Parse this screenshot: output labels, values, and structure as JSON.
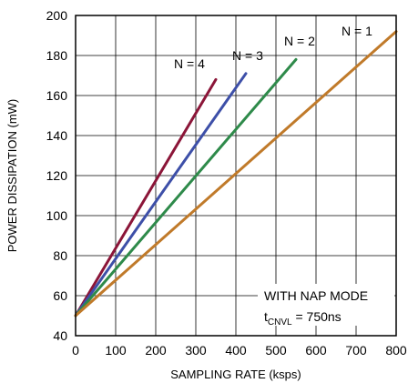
{
  "chart_data": {
    "type": "line",
    "xlabel": "SAMPLING RATE (ksps)",
    "ylabel": "POWER DISSIPATION (mW)",
    "xlim": [
      0,
      800
    ],
    "ylim": [
      40,
      200
    ],
    "xticks": [
      0,
      100,
      200,
      300,
      400,
      500,
      600,
      700,
      800
    ],
    "yticks": [
      40,
      60,
      80,
      100,
      120,
      140,
      160,
      180,
      200
    ],
    "grid": true,
    "series": [
      {
        "name": "N = 4",
        "color": "#8b1538",
        "x": [
          0,
          350
        ],
        "y": [
          50,
          168
        ]
      },
      {
        "name": "N = 3",
        "color": "#3d4fa8",
        "x": [
          0,
          425
        ],
        "y": [
          50,
          171
        ]
      },
      {
        "name": "N = 2",
        "color": "#2e8a4a",
        "x": [
          0,
          550
        ],
        "y": [
          50,
          178
        ]
      },
      {
        "name": "N = 1",
        "color": "#c07a2a",
        "x": [
          0,
          800
        ],
        "y": [
          50,
          192
        ]
      }
    ],
    "annotation": {
      "line1": "WITH NAP MODE",
      "line2_main": "t",
      "line2_sub": "CNVL",
      "line2_rest": " = 750ns"
    }
  }
}
